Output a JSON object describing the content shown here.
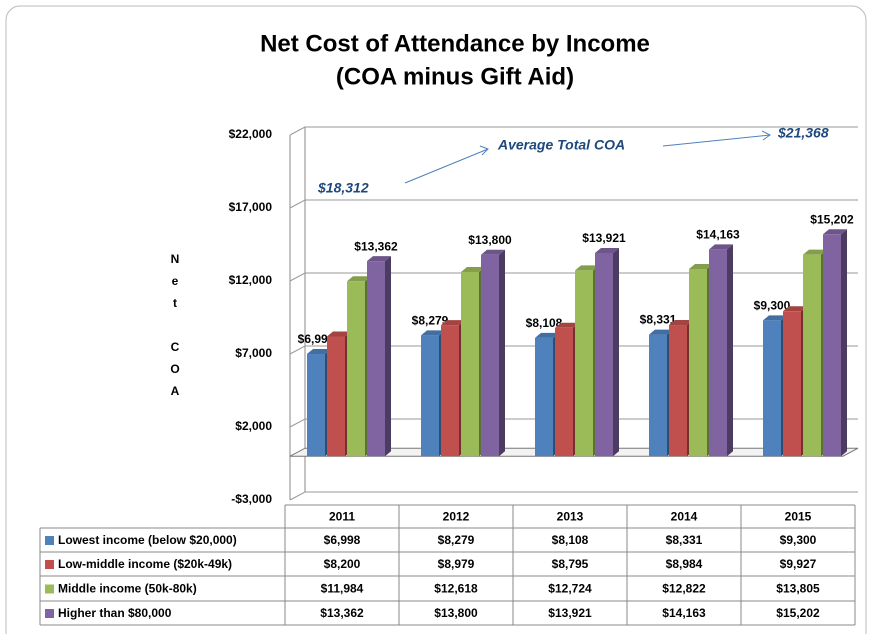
{
  "chart_data": {
    "type": "bar",
    "title": "Net Cost of Attendance by Income",
    "subtitle": "(COA minus Gift Aid)",
    "y_label": "Net COA",
    "annotations": [
      "Average Total COA",
      "$18,312",
      "$21,368"
    ],
    "categories": [
      "2011",
      "2012",
      "2013",
      "2014",
      "2015"
    ],
    "series": [
      {
        "name": "Lowest income (below $20,000)",
        "color": "#4f81bd",
        "values": [
          6998,
          8279,
          8108,
          8331,
          9300
        ],
        "value_labels": [
          "$6,998",
          "$8,279",
          "$8,108",
          "$8,331",
          "$9,300"
        ],
        "bar_labels": true
      },
      {
        "name": "Low-middle income ($20k-49k)",
        "color": "#c0504d",
        "values": [
          8200,
          8979,
          8795,
          8984,
          9927
        ],
        "value_labels": [
          "$8,200",
          "$8,979",
          "$8,795",
          "$8,984",
          "$9,927"
        ],
        "bar_labels": false
      },
      {
        "name": "Middle income (50k-80k)",
        "color": "#9bbb59",
        "values": [
          11984,
          12618,
          12724,
          12822,
          13805
        ],
        "value_labels": [
          "$11,984",
          "$12,618",
          "$12,724",
          "$12,822",
          "$13,805"
        ],
        "bar_labels": false
      },
      {
        "name": "Higher than $80,000",
        "color": "#8064a2",
        "values": [
          13362,
          13800,
          13921,
          14163,
          15202
        ],
        "value_labels": [
          "$13,362",
          "$13,800",
          "$13,921",
          "$14,163",
          "$15,202"
        ],
        "bar_labels": true
      }
    ],
    "ylim": [
      -3000,
      22000
    ],
    "yticks": [
      {
        "value": -3000,
        "label": "-$3,000"
      },
      {
        "value": 2000,
        "label": "$2,000"
      },
      {
        "value": 7000,
        "label": "$7,000"
      },
      {
        "value": 12000,
        "label": "$12,000"
      },
      {
        "value": 17000,
        "label": "$17,000"
      },
      {
        "value": 22000,
        "label": "$22,000"
      }
    ],
    "grid": true
  }
}
